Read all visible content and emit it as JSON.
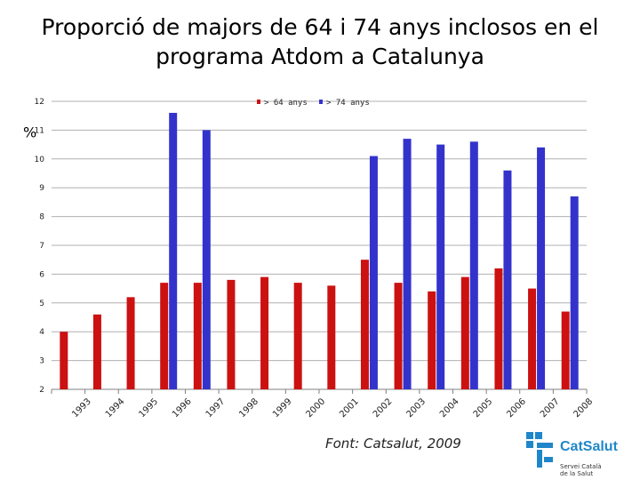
{
  "chart_data": {
    "type": "bar",
    "title": "Proporció de majors de 64 i 74 anys inclosos en el programa Atdom a Catalunya",
    "title_lines": [
      "Proporció de majors de 64 i 74 anys inclosos en el",
      "programa Atdom a Catalunya"
    ],
    "ylabel": "%",
    "xlabel": "",
    "ylim": [
      2,
      12
    ],
    "yticks": [
      2,
      3,
      4,
      5,
      6,
      7,
      8,
      9,
      10,
      11,
      12
    ],
    "grid": true,
    "legend": "top-right",
    "categories": [
      "1993",
      "1994",
      "1995",
      "1996",
      "1997",
      "1998",
      "1999",
      "2000",
      "2001",
      "2002",
      "2003",
      "2004",
      "2005",
      "2006",
      "2007",
      "2008"
    ],
    "series": [
      {
        "name": "> 64 anys",
        "color": "#cc1111",
        "values": [
          4.0,
          4.6,
          5.2,
          5.7,
          5.7,
          5.8,
          5.9,
          5.7,
          5.6,
          6.5,
          5.7,
          5.4,
          5.9,
          6.2,
          5.5,
          4.7
        ]
      },
      {
        "name": "> 74 anys",
        "color": "#3333cc",
        "values": [
          null,
          null,
          null,
          11.6,
          11.0,
          null,
          null,
          null,
          null,
          10.1,
          10.7,
          10.5,
          10.6,
          9.6,
          10.4,
          8.7
        ]
      }
    ]
  },
  "source": "Font: Catsalut, 2009",
  "logo": {
    "name": "CatSalut",
    "subtitle_lines": [
      "Servei Català",
      "de la Salut"
    ],
    "color": "#1f87c9"
  }
}
